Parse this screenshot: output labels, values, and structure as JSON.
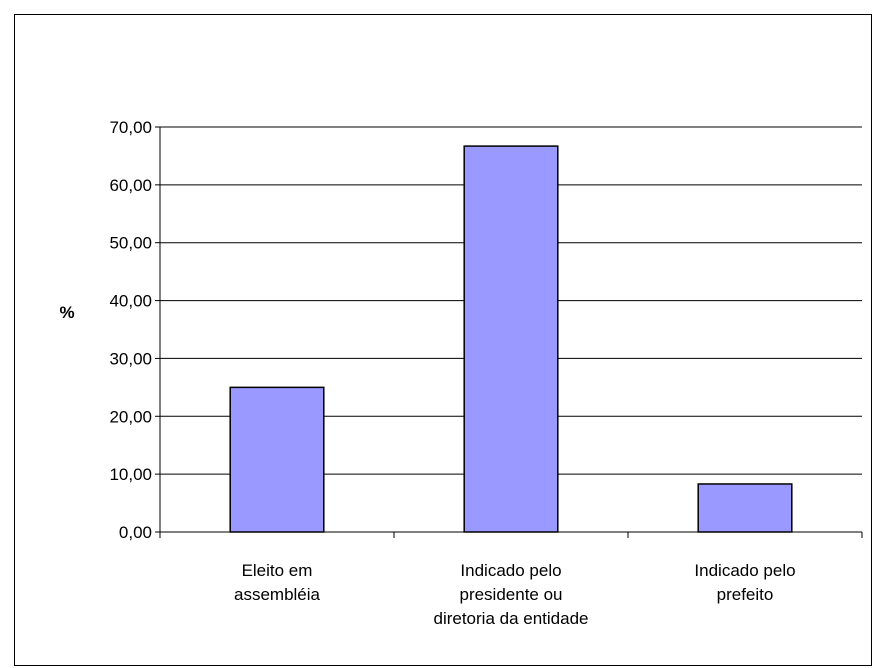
{
  "chart_data": {
    "type": "bar",
    "categories": [
      [
        "Eleito em",
        "assembléia"
      ],
      [
        "Indicado pelo",
        "presidente ou",
        "diretoria da entidade"
      ],
      [
        "Indicado pelo",
        "prefeito"
      ]
    ],
    "values": [
      25.0,
      66.7,
      8.3
    ],
    "title": "",
    "xlabel": "",
    "ylabel": "%",
    "ylim": [
      0,
      70
    ],
    "yticks": [
      0,
      10,
      20,
      30,
      40,
      50,
      60,
      70
    ],
    "ytick_labels": [
      "0,00",
      "10,00",
      "20,00",
      "30,00",
      "40,00",
      "50,00",
      "60,00",
      "70,00"
    ],
    "grid": true,
    "legend": "none",
    "colors": {
      "bar_fill": "#9999ff",
      "bar_stroke": "#000000",
      "grid": "#000000",
      "axis": "#000000"
    }
  }
}
